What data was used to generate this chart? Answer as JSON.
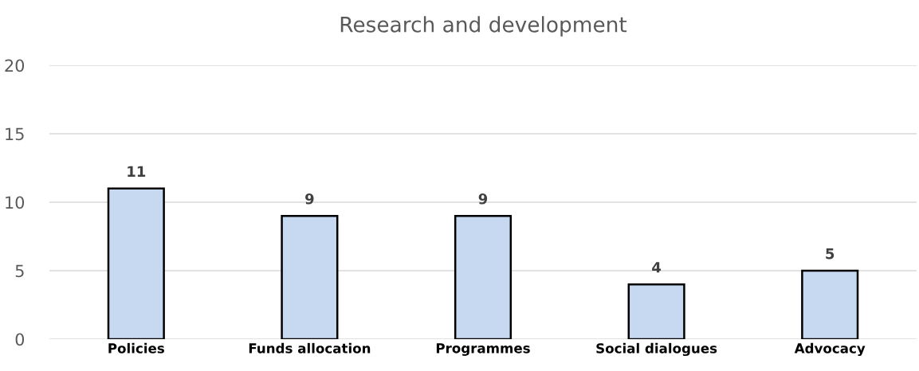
{
  "chart_data": {
    "type": "bar",
    "title": "Research and development",
    "categories": [
      "Policies",
      "Funds allocation",
      "Programmes",
      "Social dialogues",
      "Advocacy"
    ],
    "values": [
      11,
      9,
      9,
      4,
      5
    ],
    "color": "#c6d9f0",
    "ylim": [
      0,
      20
    ],
    "yticks": [
      0,
      5,
      10,
      15,
      20
    ],
    "grid": "y",
    "data_labels": true
  }
}
